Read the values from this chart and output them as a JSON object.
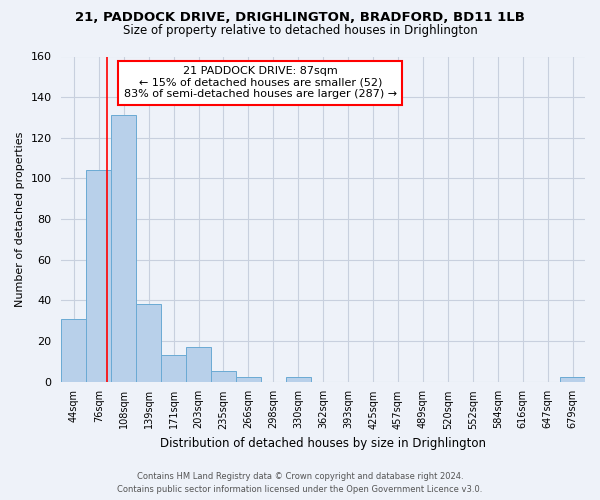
{
  "title_line1": "21, PADDOCK DRIVE, DRIGHLINGTON, BRADFORD, BD11 1LB",
  "title_line2": "Size of property relative to detached houses in Drighlington",
  "xlabel": "Distribution of detached houses by size in Drighlington",
  "ylabel": "Number of detached properties",
  "bin_labels": [
    "44sqm",
    "76sqm",
    "108sqm",
    "139sqm",
    "171sqm",
    "203sqm",
    "235sqm",
    "266sqm",
    "298sqm",
    "330sqm",
    "362sqm",
    "393sqm",
    "425sqm",
    "457sqm",
    "489sqm",
    "520sqm",
    "552sqm",
    "584sqm",
    "616sqm",
    "647sqm",
    "679sqm"
  ],
  "bar_values": [
    31,
    104,
    131,
    38,
    13,
    17,
    5,
    2,
    0,
    2,
    0,
    0,
    0,
    0,
    0,
    0,
    0,
    0,
    0,
    0,
    2
  ],
  "bar_color": "#b8d0ea",
  "bar_edge_color": "#6aaad4",
  "ylim": [
    0,
    160
  ],
  "yticks": [
    0,
    20,
    40,
    60,
    80,
    100,
    120,
    140,
    160
  ],
  "property_line_label": "21 PADDOCK DRIVE: 87sqm",
  "annotation_line1": "← 15% of detached houses are smaller (52)",
  "annotation_line2": "83% of semi-detached houses are larger (287) →",
  "footer_line1": "Contains HM Land Registry data © Crown copyright and database right 2024.",
  "footer_line2": "Contains public sector information licensed under the Open Government Licence v3.0.",
  "background_color": "#eef2f9",
  "plot_bg_color": "#eef2f9",
  "grid_color": "#c8d0de"
}
